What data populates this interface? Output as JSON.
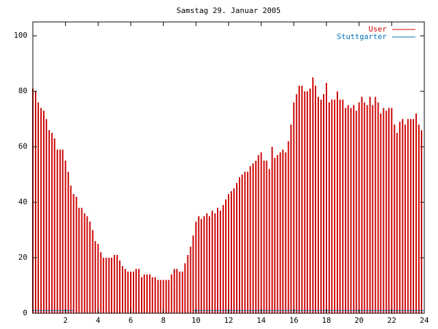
{
  "chart_data": {
    "type": "bar",
    "title": "Samstag 29. Januar 2005",
    "xlim": [
      0,
      24
    ],
    "xticks": [
      2,
      4,
      6,
      8,
      10,
      12,
      14,
      16,
      18,
      20,
      22,
      24
    ],
    "ylim": [
      0,
      105
    ],
    "yticks": [
      0,
      20,
      40,
      60,
      80,
      100
    ],
    "legend": "top-right",
    "series": [
      {
        "name": "User",
        "color": "#cc0000",
        "style": "impulses",
        "x": [
          0,
          0.17,
          0.33,
          0.5,
          0.67,
          0.83,
          1,
          1.17,
          1.33,
          1.5,
          1.67,
          1.83,
          2,
          2.17,
          2.33,
          2.5,
          2.67,
          2.83,
          3,
          3.17,
          3.33,
          3.5,
          3.67,
          3.83,
          4,
          4.17,
          4.33,
          4.5,
          4.67,
          4.83,
          5,
          5.17,
          5.33,
          5.5,
          5.67,
          5.83,
          6,
          6.17,
          6.33,
          6.5,
          6.67,
          6.83,
          7,
          7.17,
          7.33,
          7.5,
          7.67,
          7.83,
          8,
          8.17,
          8.33,
          8.5,
          8.67,
          8.83,
          9,
          9.17,
          9.33,
          9.5,
          9.67,
          9.83,
          10,
          10.17,
          10.33,
          10.5,
          10.67,
          10.83,
          11,
          11.17,
          11.33,
          11.5,
          11.67,
          11.83,
          12,
          12.17,
          12.33,
          12.5,
          12.67,
          12.83,
          13,
          13.17,
          13.33,
          13.5,
          13.67,
          13.83,
          14,
          14.17,
          14.33,
          14.5,
          14.67,
          14.83,
          15,
          15.17,
          15.33,
          15.5,
          15.67,
          15.83,
          16,
          16.17,
          16.33,
          16.5,
          16.67,
          16.83,
          17,
          17.17,
          17.33,
          17.5,
          17.67,
          17.83,
          18,
          18.17,
          18.33,
          18.5,
          18.67,
          18.83,
          19,
          19.17,
          19.33,
          19.5,
          19.67,
          19.83,
          20,
          20.17,
          20.33,
          20.5,
          20.67,
          20.83,
          21,
          21.17,
          21.33,
          21.5,
          21.67,
          21.83,
          22,
          22.17,
          22.33,
          22.5,
          22.67,
          22.83,
          23,
          23.17,
          23.33,
          23.5,
          23.67,
          23.83
        ],
        "values": [
          81,
          80,
          76,
          74,
          73,
          70,
          66,
          65,
          63,
          59,
          59,
          59,
          55,
          51,
          46,
          43,
          42,
          38,
          38,
          36,
          35,
          33,
          30,
          26,
          25,
          22,
          20,
          20,
          20,
          20,
          21,
          21,
          19,
          17,
          16,
          15,
          15,
          15,
          16,
          16,
          13,
          14,
          14,
          14,
          13,
          13,
          12,
          12,
          12,
          12,
          12,
          14,
          16,
          16,
          15,
          15,
          18,
          21,
          24,
          28,
          33,
          35,
          34,
          35,
          36,
          35,
          37,
          36,
          38,
          37,
          39,
          41,
          43,
          44,
          45,
          47,
          49,
          50,
          51,
          51,
          53,
          54,
          55,
          57,
          58,
          55,
          55,
          52,
          60,
          56,
          57,
          58,
          59,
          58,
          62,
          68,
          76,
          79,
          82,
          82,
          80,
          80,
          81,
          85,
          82,
          78,
          77,
          79,
          83,
          76,
          77,
          77,
          80,
          77,
          77,
          74,
          75,
          74,
          75,
          73,
          76,
          78,
          76,
          75,
          78,
          75,
          78,
          76,
          72,
          74,
          73,
          74,
          74,
          68,
          65,
          69,
          70,
          68,
          70,
          70,
          70,
          72,
          68,
          66
        ]
      },
      {
        "name": "Stuttgarter",
        "color": "#0072b2",
        "style": "line",
        "x": [
          0,
          2.5,
          6,
          9.83,
          24
        ],
        "values": [
          1,
          1,
          null,
          1,
          1
        ]
      }
    ]
  }
}
